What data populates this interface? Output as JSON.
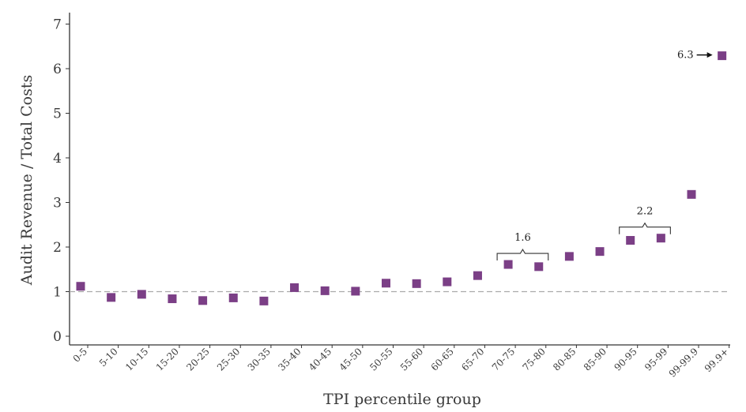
{
  "chart_data": {
    "type": "scatter",
    "title": "",
    "xlabel": "TPI percentile group",
    "ylabel": "Audit Revenue / Total Costs",
    "ylim": [
      0,
      7
    ],
    "yticks": [
      "0",
      "1",
      "2",
      "3",
      "4",
      "5",
      "6",
      "7"
    ],
    "categories": [
      "0-5",
      "5-10",
      "10-15",
      "15-20",
      "20-25",
      "25-30",
      "30-35",
      "35-40",
      "40-45",
      "45-50",
      "50-55",
      "55-60",
      "60-65",
      "65-70",
      "70-75",
      "75-80",
      "80-85",
      "85-90",
      "90-95",
      "95-99",
      "99-99.9",
      "99.9+"
    ],
    "values": [
      1.12,
      0.87,
      0.94,
      0.84,
      0.8,
      0.86,
      0.79,
      1.09,
      1.02,
      1.01,
      1.19,
      1.18,
      1.22,
      1.36,
      1.61,
      1.56,
      1.79,
      1.9,
      2.15,
      2.2,
      3.18,
      6.29
    ],
    "reference_line": {
      "y": 1,
      "style": "dashed"
    },
    "grid": false,
    "annotations": [
      {
        "label": "1.6",
        "type": "bracket",
        "from": "70-75",
        "to": "75-80"
      },
      {
        "label": "2.2",
        "type": "bracket",
        "from": "90-95",
        "to": "95-99"
      },
      {
        "label": "6.3",
        "type": "arrow",
        "target": "99.9+"
      }
    ],
    "marker_color": "#7b3f86"
  }
}
